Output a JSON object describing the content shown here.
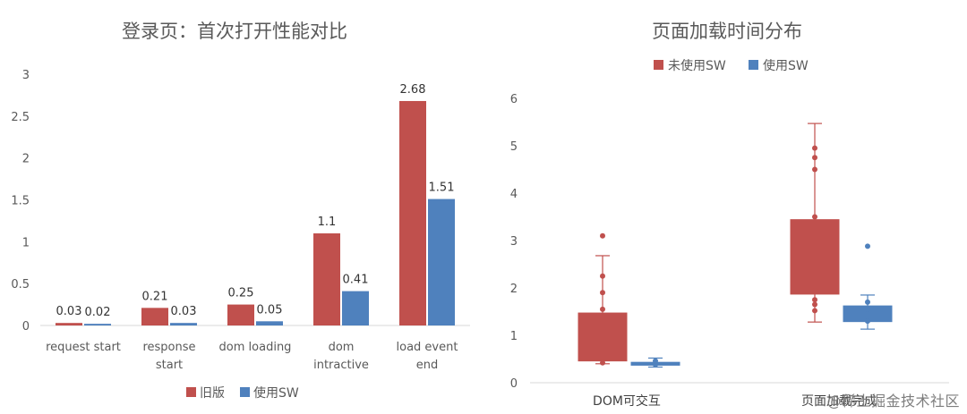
{
  "colors": {
    "old": "#c0504d",
    "new": "#4f81bd"
  },
  "watermark": "@稀土掘金技术社区",
  "chart_data": [
    {
      "type": "bar",
      "title": "登录页：首次打开性能对比",
      "categories": [
        [
          "request start"
        ],
        [
          "response",
          "start"
        ],
        [
          "dom loading"
        ],
        [
          "dom",
          "intractive"
        ],
        [
          "load event",
          "end"
        ]
      ],
      "series": [
        {
          "name": "旧版",
          "values": [
            0.03,
            0.21,
            0.25,
            1.1,
            2.68
          ],
          "labels": [
            "0.03",
            "0.21",
            "0.25",
            "1.1",
            "2.68"
          ]
        },
        {
          "name": "使用SW",
          "values": [
            0.02,
            0.03,
            0.05,
            0.41,
            1.51
          ],
          "labels": [
            "0.02",
            "0.03",
            "0.05",
            "0.41",
            "1.51"
          ]
        }
      ],
      "ylim": [
        0,
        3
      ],
      "yticks": [
        0,
        0.5,
        1,
        1.5,
        2,
        2.5,
        3
      ],
      "ytick_labels": [
        "0",
        "0.5",
        "1",
        "1.5",
        "2",
        "2.5",
        "3"
      ],
      "grid": false,
      "legend": "bottom"
    },
    {
      "type": "box",
      "title": "页面加载时间分布",
      "categories": [
        "DOM可交互",
        "页面加载完成"
      ],
      "series": [
        {
          "name": "未使用SW",
          "boxes": [
            {
              "min": 0.4,
              "q1": 0.45,
              "median": 0.47,
              "q3": 1.48,
              "max": 2.68,
              "points": [
                3.1,
                2.25,
                1.9,
                1.55,
                0.42
              ]
            },
            {
              "min": 1.28,
              "q1": 1.86,
              "median": 1.88,
              "q3": 3.45,
              "max": 5.47,
              "points": [
                4.95,
                4.75,
                4.5,
                3.5,
                1.95,
                1.75,
                1.65,
                1.52
              ]
            }
          ]
        },
        {
          "name": "使用SW",
          "boxes": [
            {
              "min": 0.33,
              "q1": 0.36,
              "median": 0.4,
              "q3": 0.44,
              "max": 0.52,
              "points": [
                0.38,
                0.46
              ]
            },
            {
              "min": 1.13,
              "q1": 1.28,
              "median": 1.35,
              "q3": 1.63,
              "max": 1.85,
              "points": [
                2.88,
                1.7,
                1.55,
                1.3
              ]
            }
          ]
        }
      ],
      "ylim": [
        0,
        6
      ],
      "yticks": [
        0,
        1,
        2,
        3,
        4,
        5,
        6
      ],
      "ytick_labels": [
        "0",
        "1",
        "2",
        "3",
        "4",
        "5",
        "6"
      ],
      "grid": false,
      "legend": "top"
    }
  ]
}
